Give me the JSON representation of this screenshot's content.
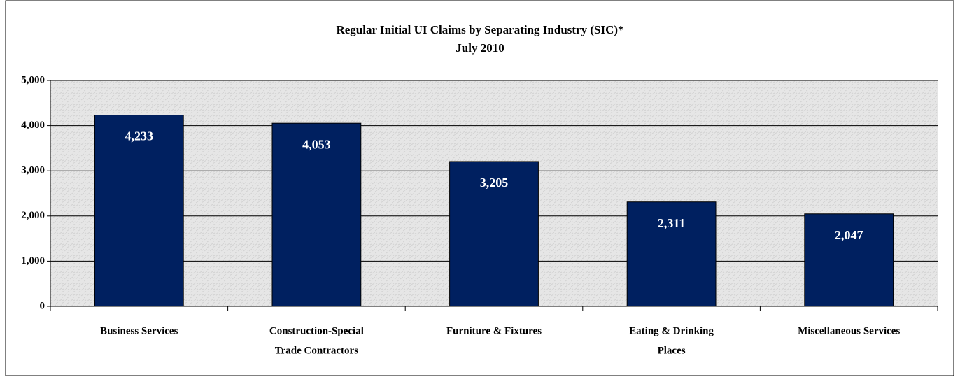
{
  "chart_data": {
    "type": "bar",
    "title": "Regular Initial UI Claims by Separating Industry (SIC)*",
    "subtitle": "July 2010",
    "categories": [
      [
        "Business Services"
      ],
      [
        "Construction-Special",
        "Trade Contractors"
      ],
      [
        "Furniture & Fixtures"
      ],
      [
        "Eating & Drinking",
        "Places"
      ],
      [
        "Miscellaneous Services"
      ]
    ],
    "values": [
      4233,
      4053,
      3205,
      2311,
      2047
    ],
    "value_labels": [
      "4,233",
      "4,053",
      "3,205",
      "2,311",
      "2,047"
    ],
    "color": "#002060",
    "ylim": [
      0,
      5000
    ],
    "yticks": [
      0,
      {
        "value": 1000,
        "label": "1,000"
      },
      {
        "value": 2000,
        "label": "2,000"
      },
      {
        "value": 3000,
        "label": "3,000"
      },
      {
        "value": 4000,
        "label": "4,000"
      },
      {
        "value": 5000,
        "label": "5,000"
      }
    ],
    "grid": true
  }
}
